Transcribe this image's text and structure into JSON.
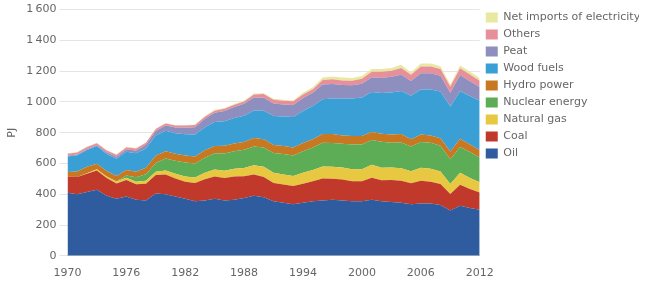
{
  "chart_data": {
    "type": "area",
    "stacked": true,
    "y_label": "PJ",
    "x": [
      1970,
      1971,
      1972,
      1973,
      1974,
      1975,
      1976,
      1977,
      1978,
      1979,
      1980,
      1981,
      1982,
      1983,
      1984,
      1985,
      1986,
      1987,
      1988,
      1989,
      1990,
      1991,
      1992,
      1993,
      1994,
      1995,
      1996,
      1997,
      1998,
      1999,
      2000,
      2001,
      2002,
      2003,
      2004,
      2005,
      2006,
      2007,
      2008,
      2009,
      2010,
      2011,
      2012
    ],
    "series": [
      {
        "name": "Oil",
        "color": "#2e5c9e",
        "values": [
          410,
          400,
          415,
          430,
          390,
          370,
          385,
          365,
          360,
          405,
          400,
          385,
          370,
          355,
          360,
          370,
          360,
          365,
          375,
          390,
          380,
          355,
          345,
          335,
          345,
          355,
          360,
          365,
          360,
          355,
          355,
          365,
          355,
          350,
          345,
          335,
          340,
          340,
          330,
          295,
          325,
          310,
          300
        ]
      },
      {
        "name": "Coal",
        "color": "#c0392b",
        "values": [
          105,
          112,
          118,
          125,
          115,
          100,
          108,
          100,
          108,
          120,
          128,
          118,
          112,
          118,
          138,
          145,
          145,
          150,
          142,
          138,
          132,
          118,
          118,
          118,
          124,
          130,
          142,
          136,
          136,
          130,
          130,
          142,
          136,
          142,
          142,
          136,
          148,
          142,
          136,
          106,
          136,
          124,
          112
        ]
      },
      {
        "name": "Natural gas",
        "color": "#e8c840",
        "values": [
          0,
          0,
          3,
          7,
          10,
          13,
          15,
          17,
          20,
          22,
          27,
          30,
          33,
          36,
          42,
          46,
          48,
          50,
          54,
          60,
          66,
          66,
          66,
          66,
          70,
          72,
          78,
          78,
          78,
          78,
          78,
          84,
          82,
          82,
          82,
          78,
          84,
          84,
          82,
          66,
          78,
          72,
          66
        ]
      },
      {
        "name": "Nuclear energy",
        "color": "#5dac56",
        "values": [
          0,
          0,
          0,
          0,
          0,
          0,
          14,
          28,
          42,
          56,
          77,
          84,
          91,
          91,
          98,
          105,
          112,
          115,
          119,
          123,
          126,
          129,
          133,
          133,
          140,
          147,
          154,
          154,
          154,
          161,
          161,
          161,
          168,
          161,
          168,
          161,
          168,
          168,
          168,
          161,
          168,
          168,
          161
        ]
      },
      {
        "name": "Hydro power",
        "color": "#c87820",
        "values": [
          30,
          36,
          42,
          36,
          36,
          36,
          36,
          36,
          42,
          48,
          48,
          46,
          46,
          46,
          48,
          48,
          50,
          50,
          50,
          54,
          54,
          52,
          52,
          52,
          54,
          54,
          58,
          58,
          54,
          54,
          54,
          52,
          52,
          54,
          54,
          48,
          48,
          48,
          48,
          50,
          54,
          50,
          48
        ]
      },
      {
        "name": "Wood fuels",
        "color": "#3a9fd4",
        "values": [
          100,
          105,
          110,
          115,
          110,
          112,
          118,
          120,
          125,
          130,
          132,
          134,
          138,
          142,
          150,
          155,
          160,
          165,
          170,
          180,
          185,
          188,
          192,
          198,
          208,
          215,
          225,
          232,
          238,
          244,
          250,
          260,
          265,
          272,
          280,
          282,
          292,
          298,
          304,
          292,
          308,
          314,
          320
        ]
      },
      {
        "name": "Peat",
        "color": "#8e8ebf",
        "values": [
          6,
          6,
          6,
          6,
          10,
          12,
          15,
          18,
          24,
          30,
          34,
          36,
          42,
          48,
          54,
          60,
          66,
          72,
          78,
          84,
          84,
          82,
          78,
          78,
          84,
          86,
          96,
          94,
          90,
          86,
          90,
          96,
          98,
          102,
          106,
          96,
          106,
          106,
          102,
          90,
          106,
          96,
          90
        ]
      },
      {
        "name": "Others",
        "color": "#e8909a",
        "values": [
          12,
          12,
          13,
          13,
          13,
          13,
          13,
          13,
          13,
          13,
          13,
          13,
          14,
          14,
          14,
          14,
          14,
          14,
          15,
          20,
          24,
          24,
          24,
          24,
          24,
          24,
          30,
          30,
          30,
          30,
          32,
          36,
          40,
          40,
          44,
          40,
          44,
          44,
          44,
          40,
          44,
          44,
          40
        ]
      },
      {
        "name": "Net imports of electricity",
        "color": "#e8e8a0",
        "values": [
          3,
          3,
          3,
          3,
          3,
          4,
          4,
          4,
          4,
          4,
          4,
          4,
          4,
          4,
          4,
          6,
          6,
          6,
          6,
          6,
          6,
          6,
          6,
          6,
          10,
          12,
          16,
          18,
          18,
          18,
          18,
          18,
          18,
          18,
          20,
          15,
          20,
          20,
          18,
          14,
          18,
          18,
          18
        ]
      }
    ],
    "xlim": [
      1970,
      2012
    ],
    "xticks": [
      1970,
      1976,
      1982,
      1988,
      1994,
      2000,
      2006,
      2012
    ],
    "ylim": [
      0,
      1600
    ],
    "yticks": [
      0,
      200,
      400,
      600,
      800,
      {
        "value": 1000,
        "label": "1 000"
      },
      {
        "value": 1200,
        "label": "1 200"
      },
      {
        "value": 1400,
        "label": "1 400"
      },
      {
        "value": 1600,
        "label": "1 600"
      }
    ],
    "grid": "y",
    "legend": "right"
  }
}
